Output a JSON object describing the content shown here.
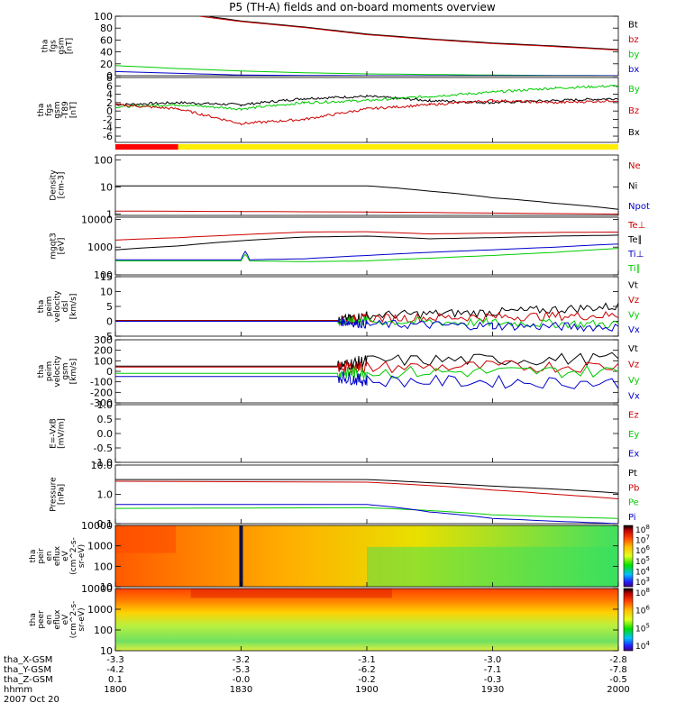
{
  "title": "P5 (TH-A) fields and on-board moments overview",
  "date": "2007 Oct 20",
  "colors": {
    "black": "#000000",
    "red": "#cc0000",
    "green": "#00cc00",
    "blue": "#0000cc",
    "yellow": "#ffee00",
    "bar_red": "#ff0000"
  },
  "icons": [
    "colorbar-icon"
  ],
  "chart_data": [
    {
      "id": "fgs",
      "type": "line",
      "ylabel": [
        "tha",
        "fgs",
        "gsm",
        "[nT]"
      ],
      "ylim": [
        0,
        100
      ],
      "yticks": [
        0,
        20,
        40,
        60,
        80,
        100
      ],
      "legend": [
        {
          "name": "Bt",
          "color": "#000000"
        },
        {
          "name": "bz",
          "color": "#cc0000"
        },
        {
          "name": "by",
          "color": "#00cc00"
        },
        {
          "name": "bx",
          "color": "#0000cc"
        }
      ],
      "series": [
        {
          "name": "Bt",
          "x": [
            1800,
            1818,
            1820,
            1830,
            1845,
            1900,
            1915,
            1930,
            1945,
            2000
          ],
          "y": [
            null,
            103,
            102,
            92,
            82,
            70,
            62,
            55,
            50,
            44
          ]
        },
        {
          "name": "bz",
          "x": [
            1820,
            1830,
            1845,
            1900,
            1915,
            1930,
            1945,
            2000
          ],
          "y": [
            100,
            91,
            81,
            69,
            61,
            54,
            49,
            43
          ]
        },
        {
          "name": "by",
          "x": [
            1800,
            1815,
            1830,
            1845,
            1900,
            1930,
            2000
          ],
          "y": [
            17,
            12,
            8,
            5,
            3,
            1,
            0
          ]
        },
        {
          "name": "bx",
          "x": [
            1800,
            1815,
            1830,
            1900,
            2000
          ],
          "y": [
            7,
            4,
            1,
            0,
            0
          ]
        }
      ]
    },
    {
      "id": "fgs_t89",
      "type": "line",
      "ylabel": [
        "tha",
        "fgs",
        "gsm",
        "-T89",
        "[nT]"
      ],
      "ylim": [
        -7.5,
        8
      ],
      "yticks": [
        -6,
        -4,
        -2,
        0,
        2,
        4,
        6,
        8
      ],
      "legend": [
        {
          "name": "By",
          "color": "#00cc00"
        },
        {
          "name": "Bz",
          "color": "#cc0000"
        },
        {
          "name": "Bx",
          "color": "#000000"
        }
      ],
      "series": [
        {
          "name": "Bx",
          "x": [
            1800,
            1815,
            1830,
            1845,
            1900,
            1915,
            1930,
            1945,
            2000
          ],
          "y": [
            1.5,
            2.0,
            1.5,
            3.0,
            3.5,
            2.5,
            2.0,
            2.5,
            3.0
          ]
        },
        {
          "name": "By",
          "x": [
            1800,
            1815,
            1830,
            1845,
            1900,
            1915,
            1930,
            1945,
            2000
          ],
          "y": [
            1.0,
            1.5,
            0.5,
            2.0,
            2.5,
            3.5,
            4.5,
            5.5,
            6.0
          ]
        },
        {
          "name": "Bz",
          "x": [
            1800,
            1815,
            1830,
            1845,
            1900,
            1915,
            1930,
            1945,
            2000
          ],
          "y": [
            1.5,
            0.5,
            -3.0,
            -2.0,
            0.5,
            1.5,
            2.5,
            2.0,
            2.5
          ]
        }
      ]
    },
    {
      "id": "state_bar",
      "type": "bar",
      "segments": [
        {
          "x": [
            1800,
            1815
          ],
          "color": "#ff0000"
        },
        {
          "x": [
            1815,
            2000
          ],
          "color": "#ffee00"
        }
      ]
    },
    {
      "id": "density",
      "type": "line",
      "scale": "log",
      "ylabel": [
        "Density",
        "[cm-3]"
      ],
      "ylim": [
        0.9,
        150
      ],
      "yticks": [
        1,
        10,
        100
      ],
      "yticklabels": [
        "1",
        "10",
        "100"
      ],
      "legend": [
        {
          "name": "Ne",
          "color": "#cc0000"
        },
        {
          "name": "Ni",
          "color": "#000000"
        },
        {
          "name": "Npot",
          "color": "#0000cc"
        }
      ],
      "series": [
        {
          "name": "Ni",
          "x": [
            1800,
            1900,
            1915,
            1930,
            1945,
            2000
          ],
          "y": [
            11,
            11,
            7,
            4,
            2.5,
            1.5
          ]
        },
        {
          "name": "Ne",
          "x": [
            1800,
            1900,
            2000
          ],
          "y": [
            1.3,
            1.2,
            1.0
          ]
        }
      ]
    },
    {
      "id": "temp",
      "type": "line",
      "scale": "log",
      "ylabel": [
        "mgqt3",
        "[eV]"
      ],
      "ylim": [
        100,
        12000
      ],
      "yticks": [
        100,
        1000,
        10000
      ],
      "yticklabels": [
        "100",
        "1000",
        "10000"
      ],
      "legend": [
        {
          "name": "Te⊥",
          "color": "#cc0000"
        },
        {
          "name": "Te∥",
          "color": "#000000"
        },
        {
          "name": "Ti⊥",
          "color": "#0000cc"
        },
        {
          "name": "Ti∥",
          "color": "#00cc00"
        }
      ],
      "series": [
        {
          "name": "Te⊥",
          "x": [
            1800,
            1815,
            1830,
            1845,
            1900,
            1915,
            1930,
            1945,
            2000
          ],
          "y": [
            1800,
            2200,
            2800,
            3500,
            3600,
            3000,
            3200,
            3400,
            3500
          ]
        },
        {
          "name": "Te∥",
          "x": [
            1800,
            1815,
            1830,
            1845,
            1900,
            1915,
            1930,
            1945,
            2000
          ],
          "y": [
            800,
            1100,
            1700,
            2300,
            2500,
            2000,
            2200,
            2500,
            2700
          ]
        },
        {
          "name": "Ti⊥",
          "x": [
            1800,
            1830,
            1831,
            1832,
            1845,
            1900,
            1915,
            1930,
            1945,
            2000
          ],
          "y": [
            350,
            350,
            700,
            350,
            380,
            500,
            650,
            800,
            1000,
            1300
          ]
        },
        {
          "name": "Ti∥",
          "x": [
            1800,
            1830,
            1831,
            1832,
            1845,
            1900,
            1915,
            1930,
            1945,
            2000
          ],
          "y": [
            320,
            320,
            550,
            320,
            300,
            320,
            400,
            500,
            650,
            900
          ]
        }
      ]
    },
    {
      "id": "velocity_dsl",
      "type": "line",
      "ylabel": [
        "tha",
        "peim",
        "velocity",
        "dsl",
        "[km/s]"
      ],
      "ylim": [
        -5,
        15
      ],
      "yticks": [
        -5,
        0,
        5,
        10,
        15
      ],
      "legend": [
        {
          "name": "Vt",
          "color": "#000000"
        },
        {
          "name": "Vz",
          "color": "#cc0000"
        },
        {
          "name": "Vy",
          "color": "#00cc00"
        },
        {
          "name": "Vx",
          "color": "#0000cc"
        }
      ],
      "series": [
        {
          "name": "Vt",
          "x": [
            1800,
            1853,
            1900,
            1930,
            2000
          ],
          "y": [
            0.3,
            0.3,
            2,
            3,
            5
          ]
        },
        {
          "name": "Vz",
          "x": [
            1800,
            1853,
            1900,
            1930,
            2000
          ],
          "y": [
            0.2,
            0.2,
            1,
            1.5,
            2
          ]
        },
        {
          "name": "Vy",
          "x": [
            1800,
            1853,
            1900,
            1930,
            2000
          ],
          "y": [
            0,
            0,
            0,
            -0.5,
            -1
          ]
        },
        {
          "name": "Vx",
          "x": [
            1800,
            1853,
            1900,
            1930,
            2000
          ],
          "y": [
            0,
            0,
            -1,
            -1.5,
            -2
          ]
        }
      ]
    },
    {
      "id": "velocity_gsm",
      "type": "line",
      "ylabel": [
        "tha",
        "peim",
        "velocity",
        "gsm",
        "[km/s]"
      ],
      "ylim": [
        -300,
        300
      ],
      "yticks": [
        -300,
        -200,
        -100,
        0,
        100,
        200,
        300
      ],
      "legend": [
        {
          "name": "Vt",
          "color": "#000000"
        },
        {
          "name": "Vz",
          "color": "#cc0000"
        },
        {
          "name": "Vy",
          "color": "#00cc00"
        },
        {
          "name": "Vx",
          "color": "#0000cc"
        }
      ],
      "series": [
        {
          "name": "Vt",
          "x": [
            1800,
            1853,
            1900,
            2000
          ],
          "y": [
            50,
            50,
            100,
            120
          ]
        },
        {
          "name": "Vz",
          "x": [
            1800,
            1853,
            1900,
            2000
          ],
          "y": [
            40,
            40,
            40,
            50
          ]
        },
        {
          "name": "Vy",
          "x": [
            1800,
            1853,
            1900,
            2000
          ],
          "y": [
            -20,
            -20,
            -10,
            0
          ]
        },
        {
          "name": "Vx",
          "x": [
            1800,
            1853,
            1900,
            2000
          ],
          "y": [
            -50,
            -50,
            -90,
            -110
          ]
        }
      ]
    },
    {
      "id": "efield",
      "type": "line",
      "ylabel": [
        "E=-VxB",
        "[mV/m]"
      ],
      "ylim": [
        -1,
        1
      ],
      "yticks": [
        -1.0,
        -0.5,
        0.0,
        0.5,
        1.0
      ],
      "yticklabels": [
        "-1.0",
        "-0.5",
        "0.0",
        "0.5",
        "1.0"
      ],
      "legend": [
        {
          "name": "Ez",
          "color": "#cc0000"
        },
        {
          "name": "Ey",
          "color": "#00cc00"
        },
        {
          "name": "Ex",
          "color": "#0000cc"
        }
      ],
      "series": []
    },
    {
      "id": "pressure",
      "type": "line",
      "scale": "log",
      "ylabel": [
        "Pressure",
        "[nPa]"
      ],
      "ylim": [
        0.1,
        10
      ],
      "yticks": [
        0.1,
        1.0,
        10.0
      ],
      "yticklabels": [
        "0.1",
        "1.0",
        "10.0"
      ],
      "legend": [
        {
          "name": "Pt",
          "color": "#000000"
        },
        {
          "name": "Pb",
          "color": "#cc0000"
        },
        {
          "name": "Pe",
          "color": "#00cc00"
        },
        {
          "name": "Pi",
          "color": "#0000cc"
        }
      ],
      "series": [
        {
          "name": "Pt",
          "x": [
            1800,
            1900,
            1915,
            1930,
            1945,
            2000
          ],
          "y": [
            3.2,
            3.2,
            2.5,
            1.9,
            1.5,
            1.1
          ]
        },
        {
          "name": "Pb",
          "x": [
            1800,
            1900,
            1915,
            1930,
            1945,
            2000
          ],
          "y": [
            2.8,
            2.6,
            2.0,
            1.4,
            1.0,
            0.7
          ]
        },
        {
          "name": "Pe",
          "x": [
            1800,
            1900,
            1915,
            1930,
            1945,
            2000
          ],
          "y": [
            0.33,
            0.35,
            0.28,
            0.2,
            0.17,
            0.15
          ]
        },
        {
          "name": "Pi",
          "x": [
            1800,
            1900,
            1915,
            1930,
            1945,
            2000
          ],
          "y": [
            0.45,
            0.45,
            0.25,
            0.15,
            0.12,
            0.1
          ]
        }
      ]
    },
    {
      "id": "ion_spectrogram",
      "type": "heatmap",
      "ylabel": [
        "tha",
        "peir",
        "en",
        "eflux",
        "eV",
        "(cm^2-s-",
        "sr-eV)"
      ],
      "ylim": [
        10,
        10000
      ],
      "yticks": [
        10,
        100,
        1000,
        10000
      ],
      "yticklabels": [
        "10",
        "100",
        "1000",
        "10000"
      ],
      "colorbar": {
        "ticks": [
          "10",
          "10",
          "10",
          "10",
          "10",
          "10"
        ],
        "exponents": [
          "8",
          "7",
          "6",
          "5",
          "4",
          "3"
        ]
      }
    },
    {
      "id": "electron_spectrogram",
      "type": "heatmap",
      "ylabel": [
        "tha",
        "peer",
        "en",
        "eflux",
        "eV",
        "(cm^2-s-",
        "sr-eV)"
      ],
      "ylim": [
        10,
        10000
      ],
      "yticks": [
        10,
        100,
        1000,
        10000
      ],
      "yticklabels": [
        "10",
        "100",
        "1000",
        "10000"
      ],
      "colorbar": {
        "ticks": [
          "10",
          "10",
          "10",
          "10"
        ],
        "exponents": [
          "8",
          "6",
          "5",
          "4"
        ]
      }
    }
  ],
  "x_axis": {
    "ticks": [
      1800,
      1830,
      1900,
      1930,
      2000
    ],
    "rows": [
      {
        "label": "tha_X-GSM",
        "values": [
          "-3.3",
          "-3.2",
          "-3.1",
          "-3.0",
          "-2.8"
        ]
      },
      {
        "label": "tha_Y-GSM",
        "values": [
          "-4.2",
          "-5.3",
          "-6.2",
          "-7.1",
          "-7.8"
        ]
      },
      {
        "label": "tha_Z-GSM",
        "values": [
          "0.1",
          "-0.0",
          "-0.2",
          "-0.3",
          "-0.5"
        ]
      },
      {
        "label": "hhmm",
        "values": [
          "1800",
          "1830",
          "1900",
          "1930",
          "2000"
        ]
      }
    ]
  }
}
